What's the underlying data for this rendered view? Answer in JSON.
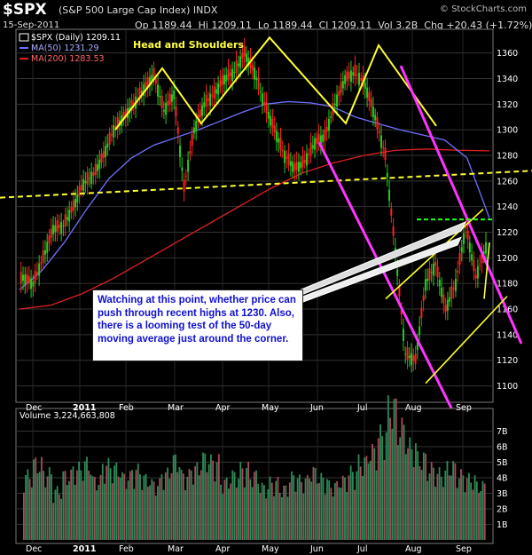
{
  "header": {
    "title": "$SPX",
    "subtitle": "(S&P 500 Large Cap Index) INDX",
    "brand": "© StockCharts.com",
    "date": "15-Sep-2011",
    "quote": "Op 1189.44  Hi 1209.11  Lo 1189.44  Cl 1209.11  Vol 3.2B  Chg +20.43 (+1.72%)"
  },
  "legend": {
    "price": "$SPX (Daily) 1209.11",
    "ma50": "MA(50) 1231.29",
    "ma200": "MA(200) 1283.53",
    "volume": "Volume 3,224,663,808"
  },
  "annotations": {
    "pattern": "Head and Shoulders",
    "note": "Watching at this point, whether price can push through recent highs at 1230. Also, there is a looming test of the 50-day moving average just around the corner."
  },
  "colors": {
    "background": "#000000",
    "up_candle": "#22cc22",
    "down_candle": "#ff2020",
    "ma50": "#7070ff",
    "ma200": "#e02020",
    "trendline_yellow": "#ffff30",
    "channel_magenta": "#ff33ff",
    "resistance_green": "#22ff22",
    "volume_up": "#2e8b57",
    "volume_down": "#aa4a5a"
  },
  "chart_data": [
    {
      "type": "candlestick",
      "title": "$SPX (S&P 500 Large Cap Index)",
      "x_labels": [
        "Dec",
        "2011",
        "Feb",
        "Mar",
        "Apr",
        "May",
        "Jun",
        "Jul",
        "Aug",
        "Sep"
      ],
      "ylim": [
        1090,
        1375
      ],
      "y_ticks": [
        1100,
        1120,
        1140,
        1160,
        1180,
        1200,
        1220,
        1240,
        1260,
        1280,
        1300,
        1320,
        1340,
        1360
      ],
      "series": [
        {
          "name": "$SPX (Daily)",
          "values": [
            1185,
            1180,
            1200,
            1223,
            1225,
            1240,
            1258,
            1265,
            1280,
            1300,
            1310,
            1320,
            1332,
            1343,
            1315,
            1328,
            1255,
            1300,
            1320,
            1328,
            1340,
            1345,
            1360,
            1345,
            1320,
            1300,
            1280,
            1270,
            1275,
            1290,
            1295,
            1320,
            1340,
            1345,
            1335,
            1310,
            1280,
            1205,
            1125,
            1120,
            1180,
            1195,
            1160,
            1180,
            1225,
            1185,
            1209
          ]
        },
        {
          "name": "MA(50)",
          "values": [
            1175,
            1190,
            1212,
            1238,
            1262,
            1278,
            1288,
            1294,
            1300,
            1307,
            1314,
            1320,
            1322,
            1321,
            1318,
            1310,
            1305,
            1300,
            1296,
            1292,
            1278,
            1231
          ]
        },
        {
          "name": "MA(200)",
          "values": [
            1160,
            1163,
            1172,
            1184,
            1198,
            1212,
            1226,
            1240,
            1254,
            1266,
            1274,
            1280,
            1284,
            1285,
            1284,
            1283.53
          ]
        }
      ],
      "trendlines": [
        {
          "name": "Head and Shoulders",
          "color": "yellow"
        },
        {
          "name": "neckline",
          "color": "yellow dashed"
        },
        {
          "name": "downtrend channel",
          "color": "magenta"
        },
        {
          "name": "resistance 1230",
          "value": 1230,
          "color": "green dashed"
        },
        {
          "name": "rising channel",
          "color": "yellow"
        }
      ]
    },
    {
      "type": "bar",
      "title": "Volume",
      "ylim": [
        0,
        8
      ],
      "y_ticks": [
        "1B",
        "2B",
        "3B",
        "4B",
        "5B",
        "6B",
        "7B"
      ],
      "x_labels": [
        "Dec",
        "2011",
        "Feb",
        "Mar",
        "Apr",
        "May",
        "Jun",
        "Jul",
        "Aug",
        "Sep"
      ],
      "values": [
        3.8,
        4.5,
        3.9,
        2.9,
        3.8,
        4.2,
        4.5,
        3.5,
        4.4,
        4.2,
        3.7,
        4.1,
        3.6,
        3.3,
        3.9,
        4.7,
        3.8,
        4.2,
        4.8,
        4.6,
        3.4,
        3.8,
        4.2,
        3.8,
        3.1,
        3.4,
        3.0,
        3.7,
        3.5,
        4.0,
        3.6,
        3.2,
        3.5,
        4.0,
        4.6,
        5.2,
        6.2,
        7.8,
        6.6,
        5.5,
        4.8,
        4.2,
        3.9,
        4.3,
        3.8,
        3.6,
        3.2
      ]
    }
  ]
}
